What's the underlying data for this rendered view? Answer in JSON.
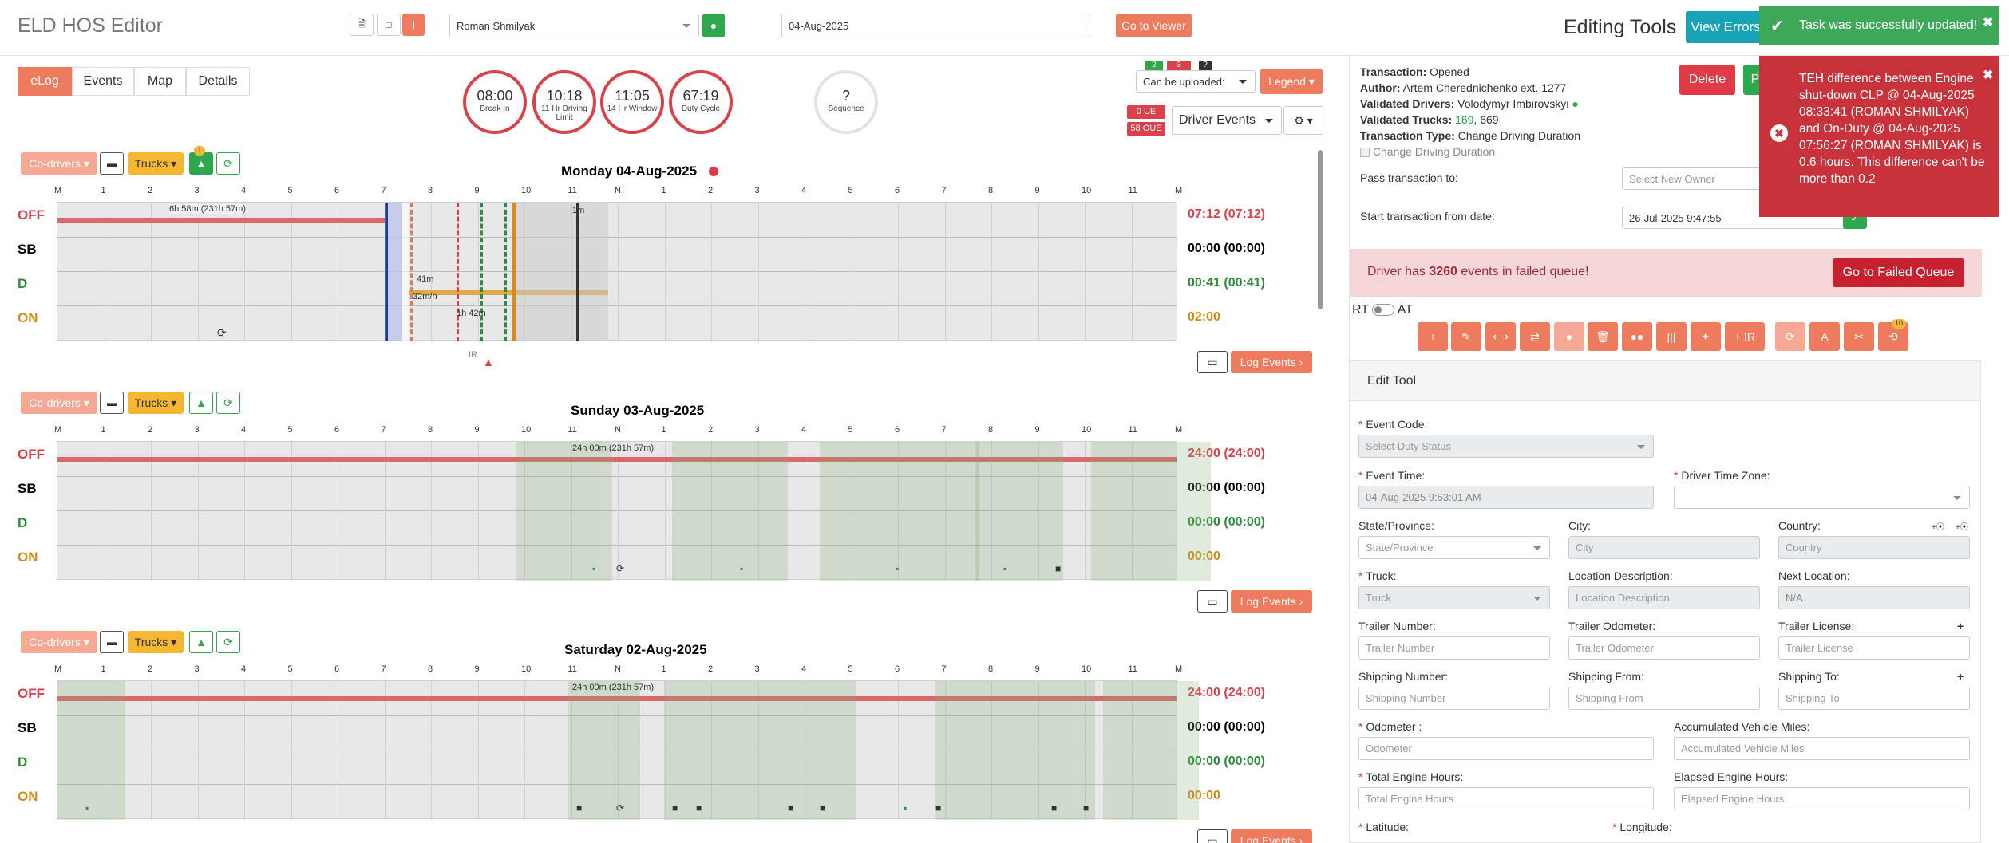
{
  "app": {
    "title": "ELD HOS Editor"
  },
  "header": {
    "driver": "Roman Shmilyak",
    "date": "04-Aug-2025",
    "go_viewer": "Go to Viewer",
    "editing_tools": "Editing Tools",
    "view_errors": "View Errors"
  },
  "tabs": [
    "eLog",
    "Events",
    "Map",
    "Details"
  ],
  "clocks": [
    {
      "value": "08:00",
      "label": "Break In"
    },
    {
      "value": "10:18",
      "label": "11 Hr Driving Limit"
    },
    {
      "value": "11:05",
      "label": "14 Hr Window"
    },
    {
      "value": "67:19",
      "label": "Duty Cycle"
    },
    {
      "value": "?",
      "label": "Sequence"
    }
  ],
  "badges": {
    "b1": "2",
    "b2": "3",
    "b3": "?",
    "upload": "Can be uploaded:",
    "legend": "Legend",
    "ue": "0 UE",
    "oue": "58 OUE",
    "driver_events": "Driver Events"
  },
  "toolbar": {
    "codrivers": "Co-drivers",
    "trucks": "Trucks",
    "badge": "1",
    "log_events": "Log Events"
  },
  "statuses": [
    "OFF",
    "SB",
    "D",
    "ON"
  ],
  "hours": [
    "M",
    "1",
    "2",
    "3",
    "4",
    "5",
    "6",
    "7",
    "8",
    "9",
    "10",
    "11",
    "N",
    "1",
    "2",
    "3",
    "4",
    "5",
    "6",
    "7",
    "8",
    "9",
    "10",
    "11",
    "M"
  ],
  "days": [
    {
      "title": "Monday 04-Aug-2025",
      "totals": [
        "07:12 (07:12)",
        "00:00 (00:00)",
        "00:41 (00:41)",
        "02:00"
      ],
      "bar_label": "6h 58m (231h 57m)",
      "lbl_41m": "41m",
      "lbl_32m": "32m/h",
      "lbl_1h42": "1h 42m",
      "lbl_IR": "IR",
      "lbl_1m": "1m"
    },
    {
      "title": "Sunday 03-Aug-2025",
      "totals": [
        "24:00 (24:00)",
        "00:00 (00:00)",
        "00:00 (00:00)",
        "00:00"
      ],
      "bar_label": "24h 00m (231h 57m)"
    },
    {
      "title": "Saturday 02-Aug-2025",
      "totals": [
        "24:00 (24:00)",
        "00:00 (00:00)",
        "00:00 (00:00)",
        "00:00"
      ],
      "bar_label": "24h 00m (231h 57m)"
    }
  ],
  "transaction": {
    "status_l": "Transaction:",
    "status": "Opened",
    "author_l": "Author:",
    "author": "Artem Cherednichenko ext. 1277",
    "vdrivers_l": "Validated Drivers:",
    "vdrivers": "Volodymyr Imbirovskyi",
    "vtrucks_l": "Validated Trucks:",
    "vtrucks_a": "169",
    "vtrucks_b": "669",
    "type_l": "Transaction Type:",
    "type": "Change Driving Duration",
    "check": "Change Driving Duration",
    "delete": "Delete",
    "pass_l": "Pass transaction to:",
    "pass_ph": "Select New Owner",
    "start_l": "Start transaction from date:",
    "start_v": "26-Jul-2025 9:47:55"
  },
  "failed": {
    "pre": "Driver has",
    "count": "3260",
    "post": "events in failed queue!",
    "button": "Go to Failed Queue"
  },
  "rtat": {
    "rt": "RT",
    "at": "AT"
  },
  "tool_badge": "10",
  "tool_ir": "+ IR",
  "edit": {
    "title": "Edit Tool",
    "event_code_l": "Event Code:",
    "event_code_ph": "Select Duty Status",
    "event_time_l": "Event Time:",
    "event_time_v": "04-Aug-2025 9:53:01 AM",
    "tz_l": "Driver Time Zone:",
    "state_l": "State/Province:",
    "state_ph": "State/Province",
    "city_l": "City:",
    "city_ph": "City",
    "country_l": "Country:",
    "country_ph": "Country",
    "truck_l": "Truck:",
    "truck_ph": "Truck",
    "locdesc_l": "Location Description:",
    "locdesc_ph": "Location Description",
    "next_l": "Next Location:",
    "next_v": "N/A",
    "trailer_num_l": "Trailer Number:",
    "trailer_num_ph": "Trailer Number",
    "trailer_odo_l": "Trailer Odometer:",
    "trailer_odo_ph": "Trailer Odometer",
    "trailer_lic_l": "Trailer License:",
    "trailer_lic_ph": "Trailer License",
    "ship_num_l": "Shipping Number:",
    "ship_num_ph": "Shipping Number",
    "ship_from_l": "Shipping From:",
    "ship_from_ph": "Shipping From",
    "ship_to_l": "Shipping To:",
    "ship_to_ph": "Shipping To",
    "odo_l": "Odometer :",
    "odo_ph": "Odometer",
    "acc_l": "Accumulated Vehicle Miles:",
    "acc_ph": "Accumulated Vehicle Miles",
    "teh_l": "Total Engine Hours:",
    "teh_ph": "Total Engine Hours",
    "eeh_l": "Elapsed Engine Hours:",
    "eeh_ph": "Elapsed Engine Hours",
    "lat_l": "Latitude:",
    "lon_l": "Longitude:"
  },
  "toasts": {
    "success": "Task was successfully updated!",
    "error": "TEH difference between Engine shut-down CLP @ 04-Aug-2025 08:33:41 (ROMAN SHMILYAK) and On-Duty @ 04-Aug-2025 07:56:27 (ROMAN SHMILYAK) is 0.6 hours. This difference can't be more than 0.2"
  },
  "colors": {
    "accent": "#ef7b5e",
    "off": "#d9414b",
    "sb": "#000000",
    "d": "#2e8b3a",
    "on": "#d58a1c"
  }
}
